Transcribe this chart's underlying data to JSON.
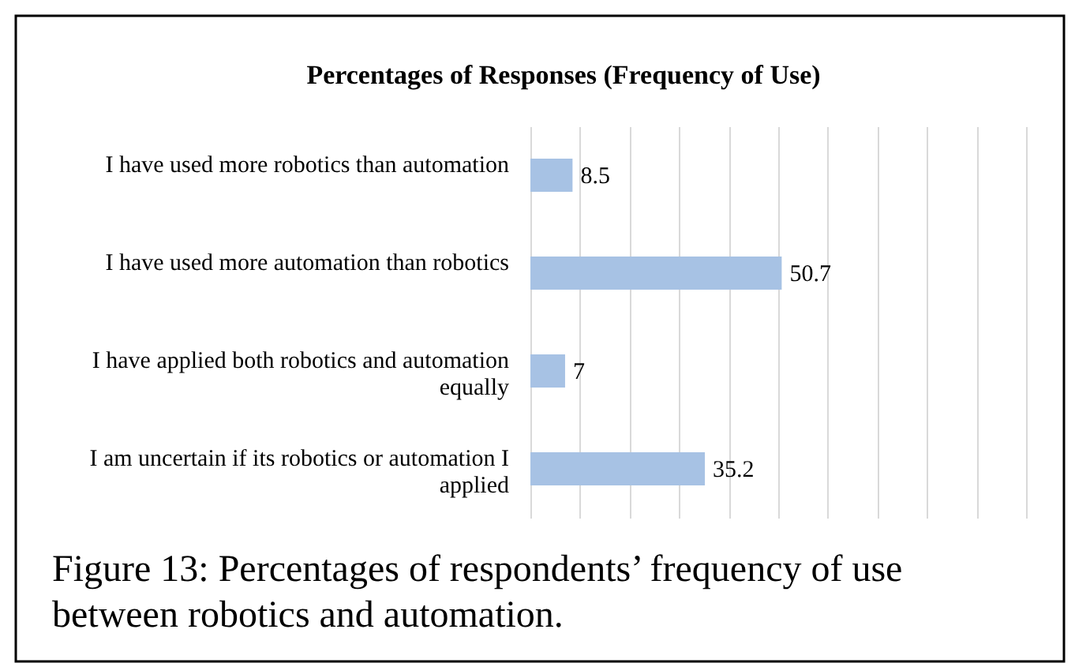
{
  "chart_data": {
    "type": "bar",
    "orientation": "horizontal",
    "title": "Percentages of Responses (Frequency of Use)",
    "categories": [
      "I have used more robotics than automation",
      "I have used more automation than robotics",
      "I have applied both robotics and automation equally",
      "I am uncertain if its robotics or automation I applied"
    ],
    "values": [
      8.5,
      50.7,
      7,
      35.2
    ],
    "color": "#a7c2e4",
    "xlim": [
      0,
      100
    ],
    "xticks": [
      {
        "value": 0,
        "label": null
      },
      {
        "value": 10,
        "label": null
      },
      {
        "value": 20,
        "label": null
      },
      {
        "value": 30,
        "label": null
      },
      {
        "value": 40,
        "label": null
      },
      {
        "value": 50,
        "label": null
      },
      {
        "value": 60,
        "label": null
      },
      {
        "value": 70,
        "label": null
      },
      {
        "value": 80,
        "label": null
      },
      {
        "value": 90,
        "label": null
      },
      {
        "value": 100,
        "label": null
      }
    ],
    "grid": "x",
    "tick_labels": "y",
    "data_labels": true,
    "annotations": [
      "Figure 13: Percentages of respondents’ frequency of use between robotics and automation."
    ]
  }
}
